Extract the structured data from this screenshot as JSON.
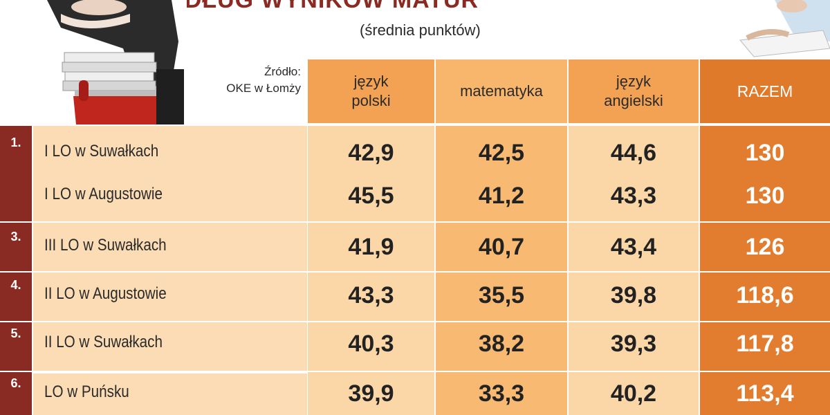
{
  "header": {
    "title": "WEDŁUG WYNIKÓW MATUR",
    "subtitle": "(średnia punktów)",
    "source_line1": "Źródło:",
    "source_line2": "OKE w Łomży"
  },
  "colors": {
    "rank_column": "#8a2b23",
    "name_bg": "#fbdcb4",
    "light_col": "#fbd7a8",
    "mid_col": "#f8b972",
    "total_col": "#e27d2f"
  },
  "chart_data": {
    "type": "table",
    "title": "WEDŁUG WYNIKÓW MATUR",
    "subtitle": "(średnia punktów)",
    "columns": [
      "język\npolski",
      "matematyka",
      "język\nangielski",
      "RAZEM"
    ],
    "rows": [
      {
        "rank": "1.",
        "school": "I LO w Suwałkach",
        "values": [
          "42,9",
          "42,5",
          "44,6",
          "130"
        ]
      },
      {
        "rank": "",
        "school": "I LO w Augustowie",
        "values": [
          "45,5",
          "41,2",
          "43,3",
          "130"
        ]
      },
      {
        "rank": "3.",
        "school": "III LO w Suwałkach",
        "values": [
          "41,9",
          "40,7",
          "43,4",
          "126"
        ]
      },
      {
        "rank": "4.",
        "school": "II LO w Augustowie",
        "values": [
          "43,3",
          "35,5",
          "39,8",
          "118,6"
        ]
      },
      {
        "rank": "5.",
        "school": "II LO w Suwałkach",
        "values": [
          "40,3",
          "38,2",
          "39,3",
          "117,8"
        ]
      },
      {
        "rank": "6.",
        "school": "LO w Puńsku",
        "values": [
          "39,9",
          "33,3",
          "40,2",
          "113,4"
        ]
      }
    ]
  }
}
